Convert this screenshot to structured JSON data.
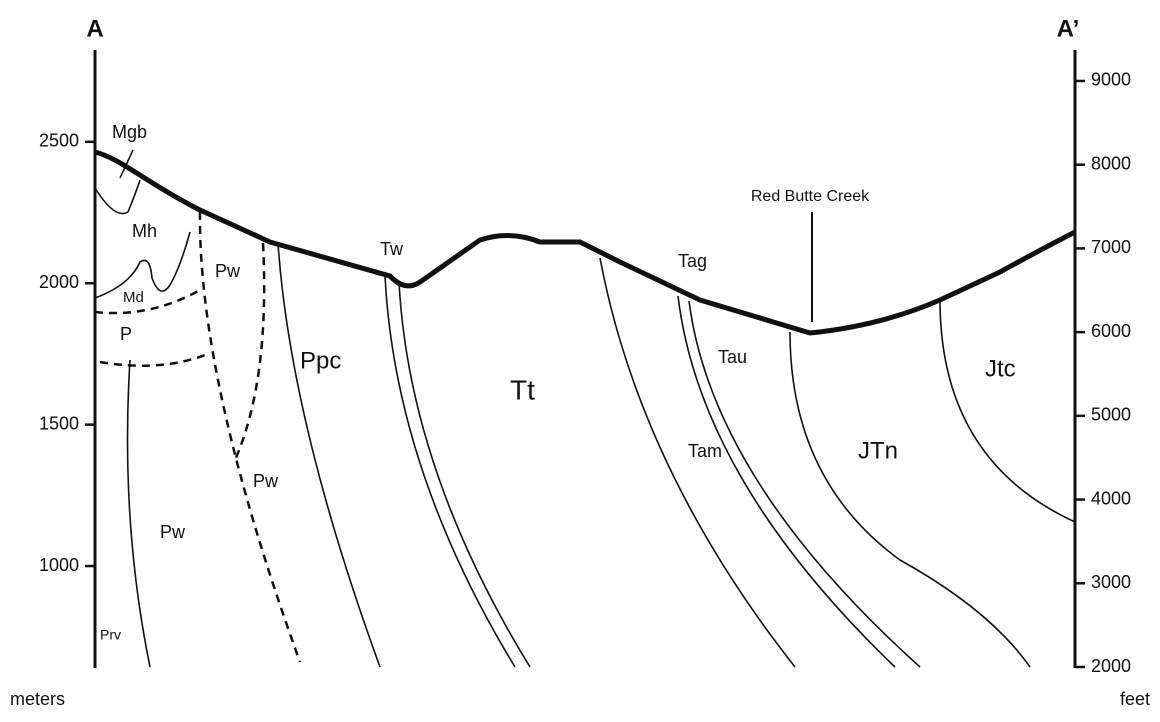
{
  "title_left": "A",
  "title_right": "A’",
  "left_axis": {
    "label": "meters",
    "lim": [
      643,
      2807
    ],
    "ticks": [
      2500,
      2000,
      1500,
      1000
    ]
  },
  "right_axis": {
    "label": "feet",
    "lim": [
      2000,
      9310
    ],
    "ticks": [
      9000,
      8000,
      7000,
      6000,
      5000,
      4000,
      3000,
      2000
    ]
  },
  "units": [
    "Mgb",
    "Mh",
    "Md",
    "P",
    "Pw",
    "Pw",
    "Pw",
    "Prv",
    "Ppc",
    "Tw",
    "Tt",
    "Tag",
    "Tau",
    "Tam",
    "JTn",
    "Jtc"
  ],
  "landmark": "Red Butte Creek"
}
